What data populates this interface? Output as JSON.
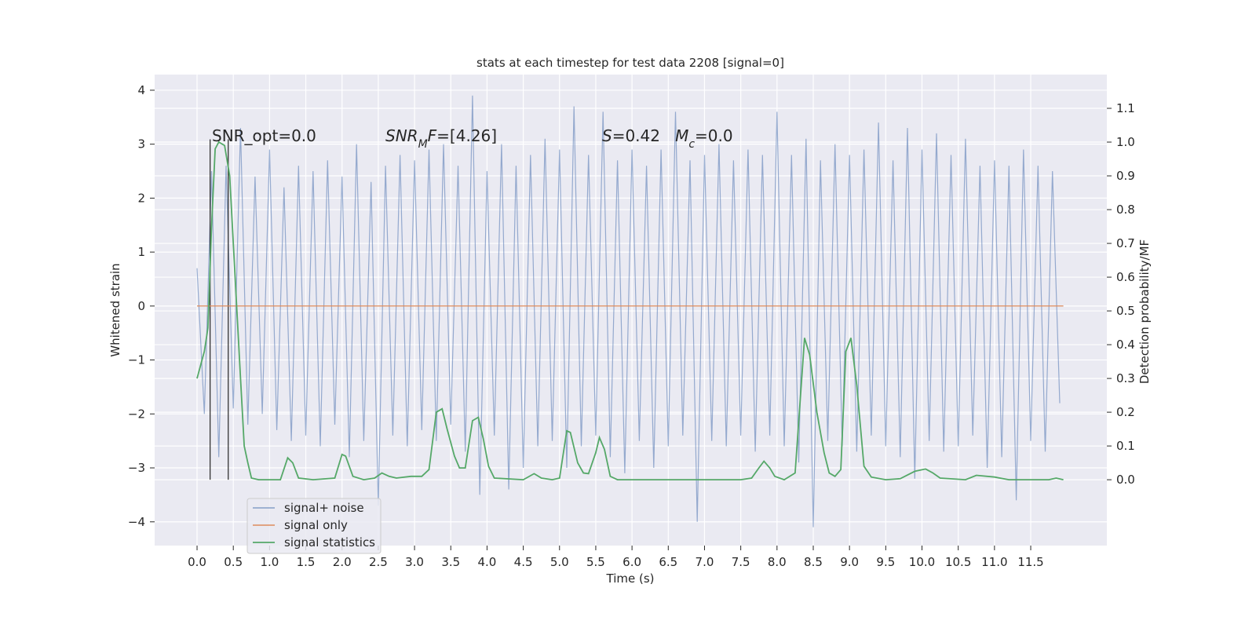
{
  "chart_data": {
    "type": "line",
    "title": "stats at each timestep for test data 2208 [signal=0]",
    "xlabel": "Time (s)",
    "ylabel": "Whitened strain",
    "y2label": "Detection probability/MF",
    "xlim": [
      -0.585,
      12.55
    ],
    "ylim": [
      -4.44,
      4.29
    ],
    "y2lim": [
      -0.195,
      1.2
    ],
    "xticks": [
      {
        "value": 0,
        "label": "0.0"
      },
      0.5,
      {
        "value": 1,
        "label": "1.0"
      },
      1.5,
      {
        "value": 2,
        "label": "2.0"
      },
      2.5,
      {
        "value": 3,
        "label": "3.0"
      },
      3.5,
      {
        "value": 4,
        "label": "4.0"
      },
      4.5,
      {
        "value": 5,
        "label": "5.0"
      },
      5.5,
      {
        "value": 6,
        "label": "6.0"
      },
      6.5,
      {
        "value": 7,
        "label": "7.0"
      },
      7.5,
      {
        "value": 8,
        "label": "8.0"
      },
      8.5,
      {
        "value": 9,
        "label": "9.0"
      },
      9.5,
      {
        "value": 10,
        "label": "10.0"
      },
      10.5,
      {
        "value": 11,
        "label": "11.0"
      },
      11.5
    ],
    "yticks": [
      4,
      3,
      2,
      1,
      0,
      {
        "value": -1,
        "label": "−1"
      },
      {
        "value": -2,
        "label": "−2"
      },
      {
        "value": -3,
        "label": "−3"
      },
      {
        "value": -4,
        "label": "−4"
      }
    ],
    "y2ticks": [
      {
        "value": 0,
        "label": "0.0"
      },
      0.1,
      0.2,
      0.3,
      0.4,
      0.5,
      0.6,
      0.7,
      0.8,
      0.9,
      {
        "value": 1,
        "label": "1.0"
      },
      1.1
    ],
    "grid": true,
    "legend": "lower left",
    "series": [
      {
        "name": "signal+ noise",
        "color": "#4c72b0",
        "x": [
          0,
          0.1,
          0.2,
          0.3,
          0.4,
          0.5,
          0.6,
          0.7,
          0.8,
          0.9,
          1,
          1.1,
          1.2,
          1.3,
          1.4,
          1.5,
          1.6,
          1.7,
          1.8,
          1.9,
          2,
          2.1,
          2.2,
          2.3,
          2.4,
          2.5,
          2.6,
          2.7,
          2.8,
          2.9,
          3,
          3.1,
          3.2,
          3.3,
          3.4,
          3.5,
          3.6,
          3.7,
          3.8,
          3.9,
          4,
          4.1,
          4.2,
          4.3,
          4.4,
          4.5,
          4.6,
          4.7,
          4.8,
          4.9,
          5,
          5.1,
          5.2,
          5.3,
          5.4,
          5.5,
          5.6,
          5.7,
          5.8,
          5.9,
          6,
          6.1,
          6.2,
          6.3,
          6.4,
          6.5,
          6.6,
          6.7,
          6.8,
          6.9,
          7,
          7.1,
          7.2,
          7.3,
          7.4,
          7.5,
          7.6,
          7.7,
          7.8,
          7.9,
          8,
          8.1,
          8.2,
          8.3,
          8.4,
          8.5,
          8.6,
          8.7,
          8.8,
          8.9,
          9,
          9.1,
          9.2,
          9.3,
          9.4,
          9.5,
          9.6,
          9.7,
          9.8,
          9.9,
          10,
          10.1,
          10.2,
          10.3,
          10.4,
          10.5,
          10.6,
          10.7,
          10.8,
          10.9,
          11,
          11.1,
          11.2,
          11.3,
          11.4,
          11.5,
          11.6,
          11.7,
          11.8,
          11.9
        ],
        "values": [
          0.7,
          -2.0,
          2.5,
          -2.8,
          2.6,
          -1.9,
          3.3,
          -2.2,
          2.4,
          -2.0,
          2.9,
          -2.3,
          2.2,
          -2.5,
          2.6,
          -2.4,
          2.5,
          -2.6,
          2.7,
          -2.2,
          2.4,
          -2.8,
          3.0,
          -2.5,
          2.3,
          -3.7,
          2.6,
          -2.4,
          2.8,
          -2.6,
          2.7,
          -2.3,
          2.9,
          -2.5,
          3.0,
          -2.2,
          2.6,
          -2.7,
          3.9,
          -3.5,
          2.5,
          -2.4,
          3.0,
          -3.4,
          2.6,
          -3.0,
          2.8,
          -2.6,
          3.1,
          -2.5,
          2.9,
          -3.0,
          3.7,
          -2.6,
          2.8,
          -2.4,
          3.6,
          -2.8,
          2.7,
          -3.1,
          2.9,
          -2.5,
          2.6,
          -3.0,
          2.9,
          -2.6,
          3.6,
          -2.4,
          2.7,
          -4.0,
          2.8,
          -2.5,
          3.0,
          -2.6,
          2.7,
          -2.4,
          2.9,
          -2.7,
          2.8,
          -2.4,
          3.6,
          -2.6,
          2.8,
          -2.9,
          3.1,
          -4.1,
          2.7,
          -2.5,
          3.0,
          -2.6,
          2.8,
          -2.7,
          2.9,
          -2.4,
          3.4,
          -2.6,
          2.7,
          -2.8,
          3.3,
          -3.2,
          2.9,
          -2.5,
          3.2,
          -2.7,
          2.8,
          -2.6,
          3.1,
          -2.4,
          2.6,
          -3.0,
          2.7,
          -2.8,
          2.6,
          -3.6,
          2.9,
          -2.5,
          2.6,
          -2.7,
          2.5,
          -1.8
        ]
      },
      {
        "name": "signal only",
        "color": "#dd8452",
        "x": [
          0,
          11.95
        ],
        "values": [
          0,
          0
        ]
      },
      {
        "name": "signal statistics",
        "color": "#55a868",
        "axis": "y2",
        "x": [
          0,
          0.1,
          0.15,
          0.2,
          0.25,
          0.3,
          0.38,
          0.45,
          0.5,
          0.6,
          0.65,
          0.7,
          0.75,
          0.85,
          1.0,
          1.15,
          1.25,
          1.32,
          1.4,
          1.6,
          1.9,
          2.0,
          2.05,
          2.15,
          2.3,
          2.45,
          2.55,
          2.65,
          2.75,
          2.95,
          3.1,
          3.2,
          3.3,
          3.38,
          3.45,
          3.55,
          3.62,
          3.7,
          3.8,
          3.88,
          3.95,
          4.02,
          4.1,
          4.5,
          4.65,
          4.75,
          4.9,
          5.0,
          5.1,
          5.15,
          5.25,
          5.33,
          5.4,
          5.5,
          5.55,
          5.62,
          5.7,
          5.8,
          7.5,
          7.65,
          7.75,
          7.82,
          7.9,
          7.97,
          8.1,
          8.25,
          8.38,
          8.45,
          8.55,
          8.65,
          8.72,
          8.8,
          8.88,
          8.95,
          9.02,
          9.1,
          9.2,
          9.3,
          9.5,
          9.7,
          9.9,
          10.05,
          10.15,
          10.25,
          10.6,
          10.75,
          11.0,
          11.2,
          11.75,
          11.85,
          11.95
        ],
        "values": [
          0.3,
          0.38,
          0.45,
          0.75,
          0.98,
          1.0,
          0.99,
          0.9,
          0.7,
          0.3,
          0.1,
          0.05,
          0.005,
          0,
          0,
          0,
          0.065,
          0.05,
          0.005,
          0,
          0.005,
          0.075,
          0.07,
          0.01,
          0,
          0.005,
          0.02,
          0.01,
          0.005,
          0.01,
          0.01,
          0.03,
          0.2,
          0.21,
          0.15,
          0.07,
          0.035,
          0.035,
          0.175,
          0.185,
          0.12,
          0.04,
          0.005,
          0,
          0.018,
          0.005,
          0,
          0.005,
          0.145,
          0.14,
          0.05,
          0.02,
          0.018,
          0.08,
          0.125,
          0.09,
          0.01,
          0,
          0,
          0.005,
          0.035,
          0.055,
          0.035,
          0.01,
          0,
          0.02,
          0.42,
          0.37,
          0.2,
          0.08,
          0.02,
          0.01,
          0.03,
          0.38,
          0.42,
          0.28,
          0.04,
          0.008,
          0,
          0.003,
          0.025,
          0.032,
          0.02,
          0.005,
          0,
          0.013,
          0.008,
          0,
          0,
          0.005,
          0
        ]
      }
    ],
    "vlines": {
      "x": [
        0.18,
        0.43
      ],
      "ymin": -3.22,
      "ymax": 3.09,
      "color": "#333333"
    },
    "annotations": [
      [
        "SNR_opt=0.0"
      ],
      [
        "SNR",
        "M",
        "F",
        "=[4.26]"
      ],
      [
        "S",
        "=0.42   ",
        "M",
        "c",
        "=0.0"
      ]
    ]
  }
}
